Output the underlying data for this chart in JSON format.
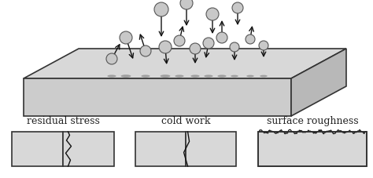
{
  "bg_color": "#ffffff",
  "plate_color": "#d8d8d8",
  "plate_edge_color": "#333333",
  "ball_color": "#c8c8c8",
  "ball_edge_color": "#555555",
  "shadow_color": "#888888",
  "arrow_color": "#111111",
  "text_color": "#222222",
  "label_fontsize": 9,
  "ball_data": [
    [
      205,
      12,
      9,
      0,
      38
    ],
    [
      237,
      4,
      8,
      0,
      32
    ],
    [
      270,
      18,
      8,
      0,
      28
    ],
    [
      302,
      10,
      7,
      0,
      25
    ],
    [
      160,
      48,
      8,
      10,
      30
    ],
    [
      185,
      65,
      7,
      -8,
      -25
    ],
    [
      210,
      60,
      8,
      2,
      25
    ],
    [
      228,
      52,
      7,
      5,
      -22
    ],
    [
      248,
      62,
      7,
      0,
      22
    ],
    [
      265,
      55,
      7,
      -4,
      22
    ],
    [
      282,
      48,
      7,
      0,
      -25
    ],
    [
      298,
      60,
      6,
      0,
      20
    ],
    [
      318,
      50,
      6,
      3,
      -20
    ],
    [
      335,
      58,
      6,
      0,
      18
    ],
    [
      142,
      75,
      7,
      12,
      -22
    ]
  ]
}
